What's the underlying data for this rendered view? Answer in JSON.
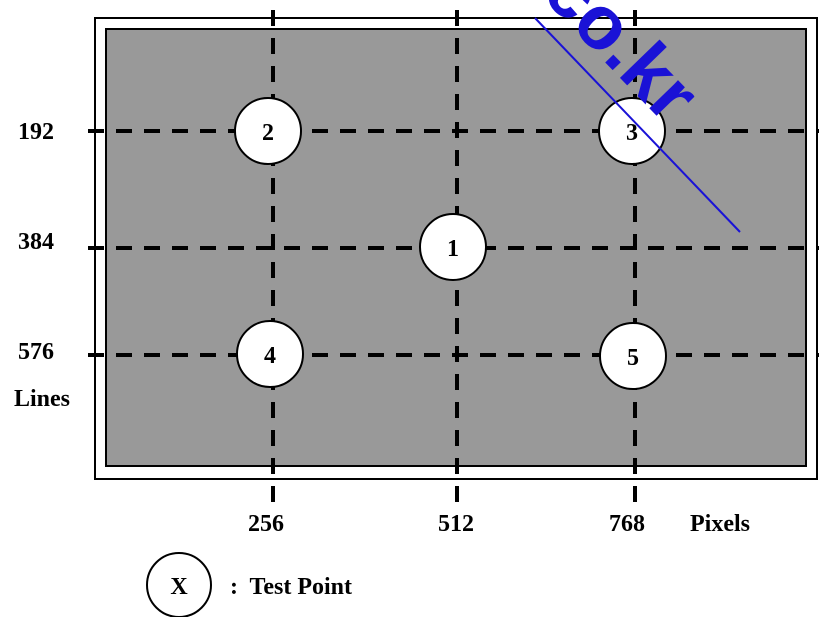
{
  "diagram": {
    "row_labels": [
      "192",
      "384",
      "576"
    ],
    "axis_y_label": "Lines",
    "col_labels": [
      "256",
      "512",
      "768"
    ],
    "axis_x_label": "Pixels",
    "test_points": [
      {
        "id": "1",
        "column": "512",
        "row": "384"
      },
      {
        "id": "2",
        "column": "256",
        "row": "192"
      },
      {
        "id": "3",
        "column": "768",
        "row": "192"
      },
      {
        "id": "4",
        "column": "256",
        "row": "576"
      },
      {
        "id": "5",
        "column": "768",
        "row": "576"
      }
    ],
    "legend": {
      "symbol": "X",
      "text": ":  Test Point"
    },
    "watermark_text": "co.kr",
    "colors": {
      "frame_fill": "#999999",
      "watermark": "#1a12d6",
      "grid_line": "#000000"
    }
  }
}
